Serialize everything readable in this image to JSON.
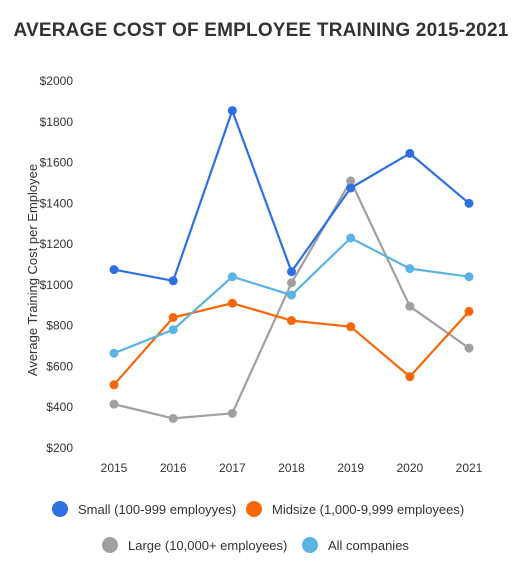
{
  "chart_data": {
    "type": "line",
    "title": "AVERAGE COST OF EMPLOYEE TRAINING 2015-2021",
    "xlabel": "",
    "ylabel": "Average Training Cost per Employee",
    "x": [
      "2015",
      "2016",
      "2017",
      "2018",
      "2019",
      "2020",
      "2021"
    ],
    "y_ticks": [
      "$200",
      "$400",
      "$600",
      "$800",
      "$1000",
      "$1200",
      "$1400",
      "$1600",
      "$1800",
      "$2000"
    ],
    "ylim": [
      200,
      2000
    ],
    "grid": false,
    "legend_position": "bottom",
    "series": [
      {
        "name": "Small (100-999 employyes)",
        "color": "#2f6fe4",
        "values": [
          1075,
          1020,
          1855,
          1065,
          1475,
          1645,
          1400
        ]
      },
      {
        "name": "Midsize (1,000-9,999 employees)",
        "color": "#f76707",
        "values": [
          510,
          840,
          910,
          825,
          795,
          550,
          870
        ]
      },
      {
        "name": "Large (10,000+ employees)",
        "color": "#a0a0a0",
        "values": [
          415,
          345,
          370,
          1010,
          1510,
          895,
          690
        ]
      },
      {
        "name": "All companies",
        "color": "#5ab4e3",
        "values": [
          665,
          780,
          1040,
          950,
          1230,
          1080,
          1040
        ]
      }
    ]
  }
}
